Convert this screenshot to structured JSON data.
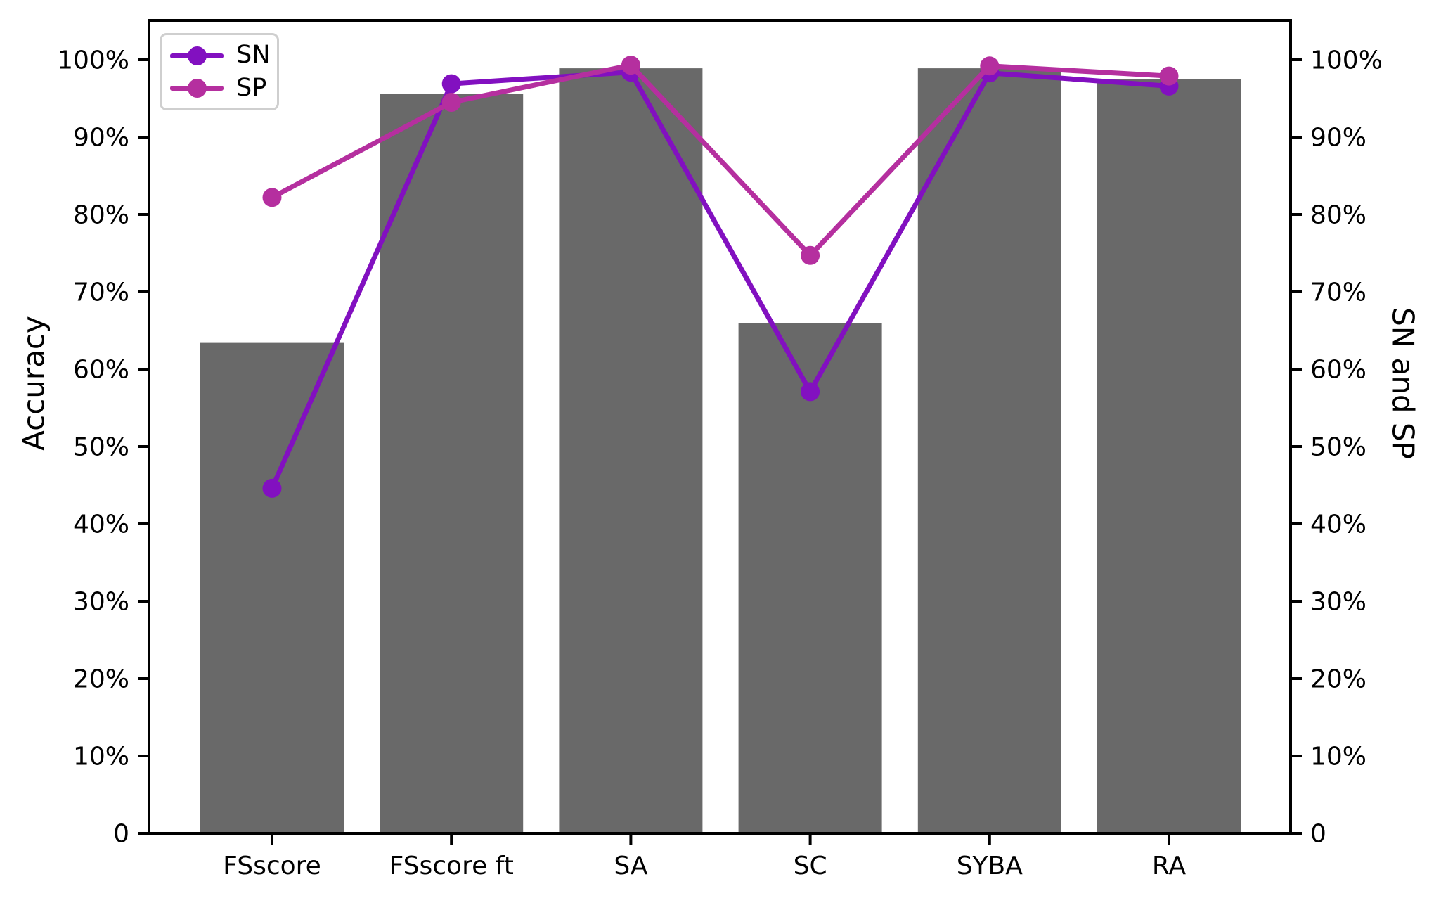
{
  "chart_data": {
    "type": "bar",
    "title": "",
    "categories": [
      "FSscore",
      "FSscore ft",
      "SA",
      "SC",
      "SYBA",
      "RA"
    ],
    "bar_series": {
      "name": "Accuracy",
      "values": [
        63.4,
        95.6,
        98.9,
        66.0,
        98.9,
        97.5
      ],
      "color": "#696969"
    },
    "series": [
      {
        "name": "SN",
        "values": [
          44.6,
          96.9,
          98.4,
          57.1,
          98.3,
          96.6
        ],
        "color": "#8210C0"
      },
      {
        "name": "SP",
        "values": [
          82.2,
          94.5,
          99.3,
          74.7,
          99.2,
          97.9
        ],
        "color": "#B52F9F"
      }
    ],
    "xlabel": "",
    "ylabel_left": "Accuracy",
    "ylabel_right": "SN and SP",
    "ylim": [
      0,
      105
    ],
    "ytick_values": [
      0,
      10,
      20,
      30,
      40,
      50,
      60,
      70,
      80,
      90,
      100
    ],
    "ytick_labels": [
      "0",
      "10%",
      "20%",
      "30%",
      "40%",
      "50%",
      "60%",
      "70%",
      "80%",
      "90%",
      "100%"
    ],
    "grid": false,
    "legend_position": "upper left",
    "axis_color": "#000000",
    "tick_label_color": "#000000"
  }
}
